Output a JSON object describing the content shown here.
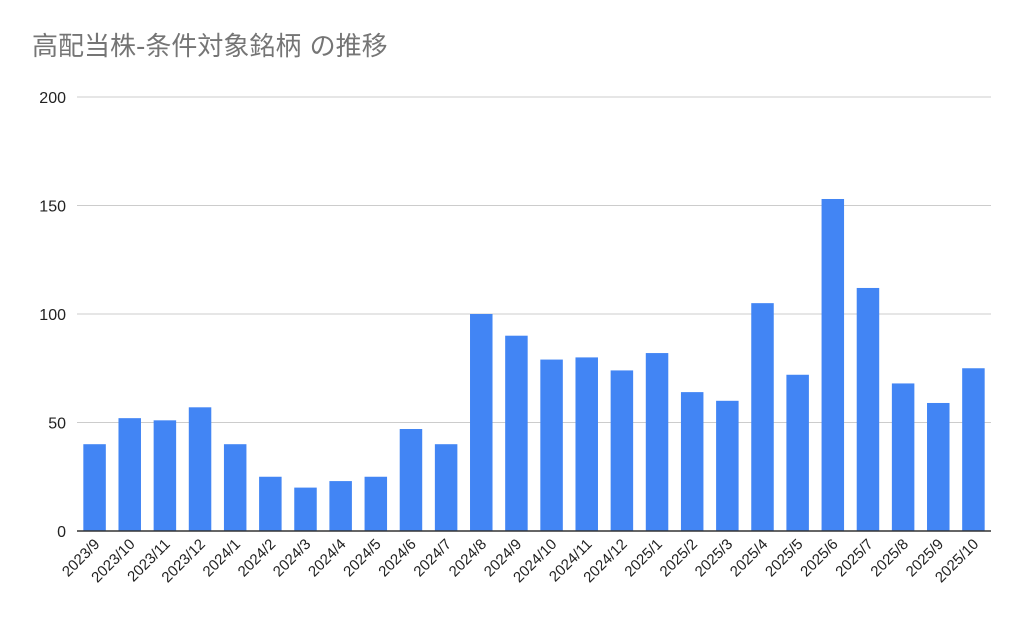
{
  "chart_data": {
    "type": "bar",
    "title": "高配当株-条件対象銘柄 の推移",
    "categories": [
      "2023/9",
      "2023/10",
      "2023/11",
      "2023/12",
      "2024/1",
      "2024/2",
      "2024/3",
      "2024/4",
      "2024/5",
      "2024/6",
      "2024/7",
      "2024/8",
      "2024/9",
      "2024/10",
      "2024/11",
      "2024/12",
      "2025/1",
      "2025/2",
      "2025/3",
      "2025/4",
      "2025/5",
      "2025/6",
      "2025/7",
      "2025/8",
      "2025/9",
      "2025/10"
    ],
    "values": [
      40,
      52,
      51,
      57,
      40,
      25,
      20,
      23,
      25,
      47,
      40,
      100,
      90,
      79,
      80,
      74,
      82,
      64,
      60,
      105,
      72,
      153,
      112,
      68,
      59,
      75
    ],
    "ylim": [
      0,
      200
    ],
    "yticks": [
      0,
      50,
      100,
      150,
      200
    ],
    "grid": true,
    "colors": {
      "bar": "#4285f4",
      "grid": "#cccccc",
      "axis": "#333333"
    }
  }
}
